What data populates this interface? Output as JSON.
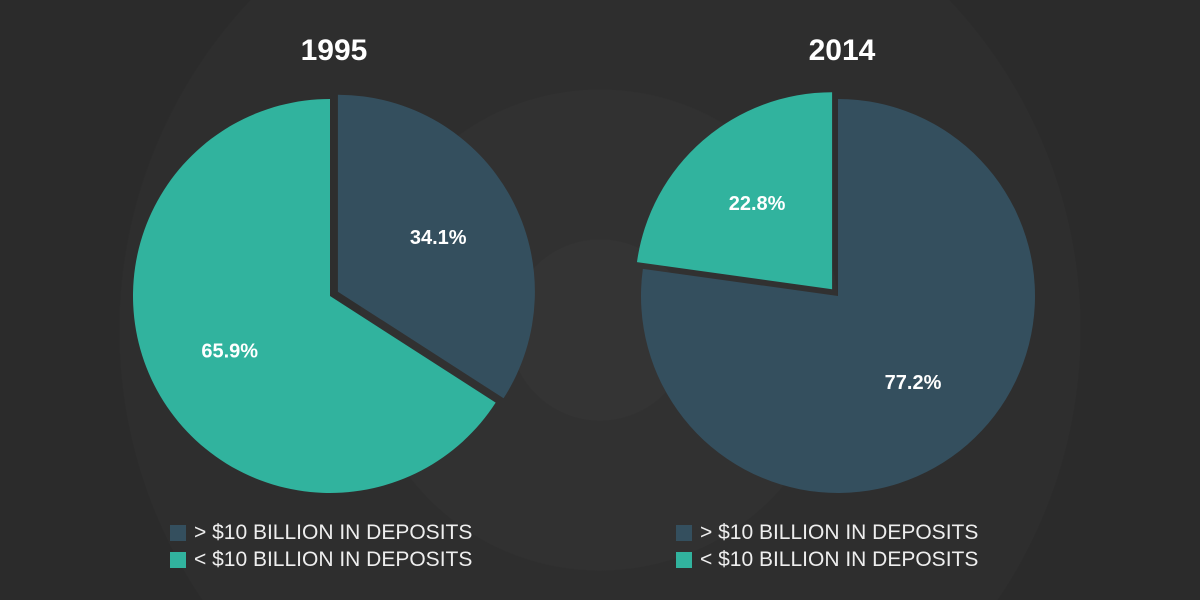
{
  "chart_data": [
    {
      "type": "pie",
      "title": "1995",
      "categories": [
        "> $10 BILLION IN DEPOSITS",
        "< $10 BILLION IN DEPOSITS"
      ],
      "values": [
        34.1,
        65.9
      ],
      "labels": [
        "34.1%",
        "65.9%"
      ],
      "exploded": 0,
      "legend": "bottom"
    },
    {
      "type": "pie",
      "title": "2014",
      "categories": [
        "> $10 BILLION IN DEPOSITS",
        "< $10 BILLION IN DEPOSITS"
      ],
      "values": [
        77.2,
        22.8
      ],
      "labels": [
        "77.2%",
        "22.8%"
      ],
      "exploded": 1,
      "legend": "bottom"
    }
  ],
  "colors": [
    "#344f5e",
    "#31b39e"
  ]
}
